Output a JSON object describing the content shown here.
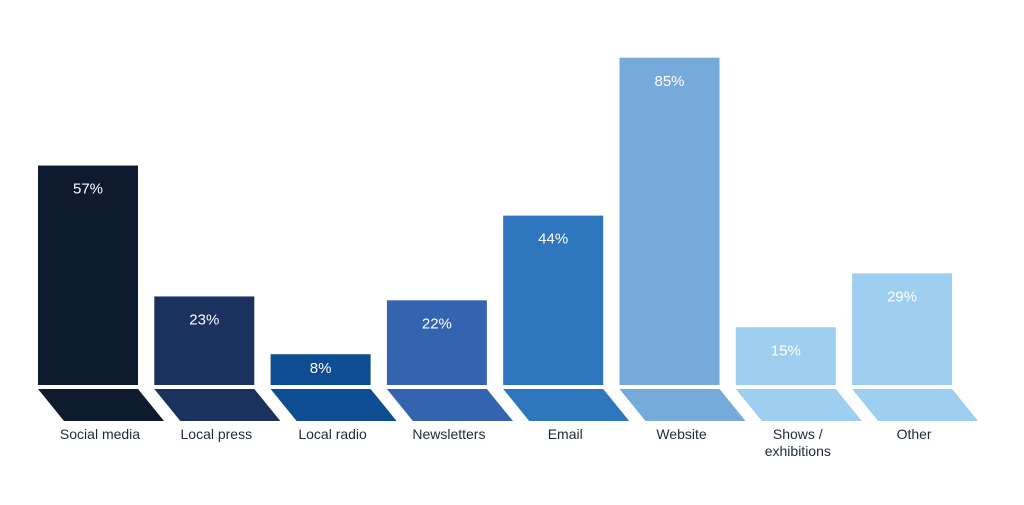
{
  "chart_data": {
    "type": "bar",
    "categories": [
      "Social media",
      "Local press",
      "Local radio",
      "Newsletters",
      "Email",
      "Website",
      "Shows / exhibitions",
      "Other"
    ],
    "category_lines": [
      [
        "Social media"
      ],
      [
        "Local press"
      ],
      [
        "Local radio"
      ],
      [
        "Newsletters"
      ],
      [
        "Email"
      ],
      [
        "Website"
      ],
      [
        "Shows /",
        "exhibitions"
      ],
      [
        "Other"
      ]
    ],
    "values": [
      57,
      23,
      8,
      22,
      44,
      85,
      15,
      29
    ],
    "value_labels": [
      "57%",
      "23%",
      "8%",
      "22%",
      "44%",
      "85%",
      "15%",
      "29%"
    ],
    "unit": "%",
    "ylim": [
      0,
      100
    ],
    "colors": [
      "#0e1a2e",
      "#1b315e",
      "#0e4d92",
      "#3464b0",
      "#2e77be",
      "#76aadb",
      "#9fcff0",
      "#9fcff0"
    ],
    "grid": false,
    "legend": "none"
  }
}
